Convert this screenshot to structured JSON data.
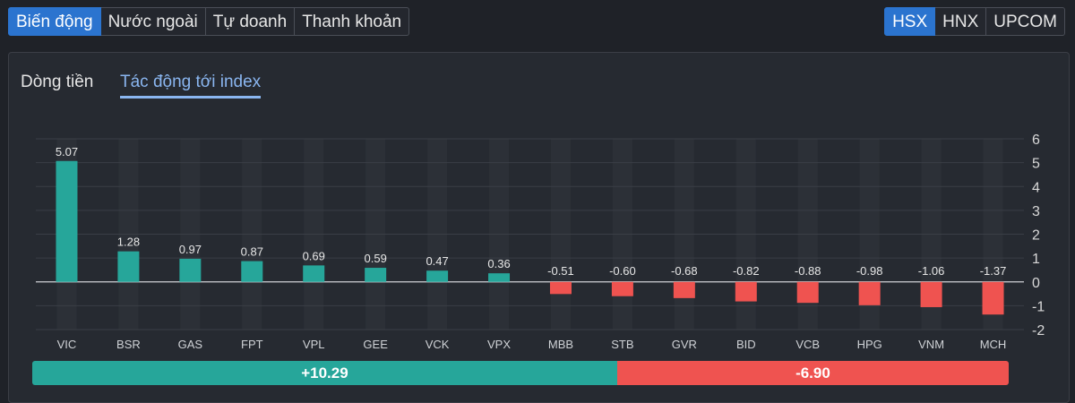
{
  "top_tabs": [
    "Biến động",
    "Nước ngoài",
    "Tự doanh",
    "Thanh khoản"
  ],
  "exchange_tabs": [
    "HSX",
    "HNX",
    "UPCOM"
  ],
  "sub_tabs": [
    "Dòng tiền",
    "Tác động tới index"
  ],
  "summary": {
    "positive_label": "+10.29",
    "negative_label": "-6.90",
    "positive_share": 0.599
  },
  "colors": {
    "positive": "#26a69a",
    "negative": "#ef5350",
    "accent": "#2b74cf"
  },
  "chart_data": {
    "type": "bar",
    "categories": [
      "VIC",
      "BSR",
      "GAS",
      "FPT",
      "VPL",
      "GEE",
      "VCK",
      "VPX",
      "MBB",
      "STB",
      "GVR",
      "BID",
      "VCB",
      "HPG",
      "VNM",
      "MCH"
    ],
    "values": [
      5.07,
      1.28,
      0.97,
      0.87,
      0.69,
      0.59,
      0.47,
      0.36,
      -0.51,
      -0.6,
      -0.68,
      -0.82,
      -0.88,
      -0.98,
      -1.06,
      -1.37
    ],
    "value_labels": [
      "5.07",
      "1.28",
      "0.97",
      "0.87",
      "0.69",
      "0.59",
      "0.47",
      "0.36",
      "-0.51",
      "-0.60",
      "-0.68",
      "-0.82",
      "-0.88",
      "-0.98",
      "-1.06",
      "-1.37"
    ],
    "yticks": [
      "6",
      "5",
      "4",
      "3",
      "2",
      "1",
      "0",
      "-1",
      "-2"
    ],
    "ylim": [
      -2,
      6
    ],
    "title": "",
    "xlabel": "",
    "ylabel": "",
    "grid": true
  }
}
